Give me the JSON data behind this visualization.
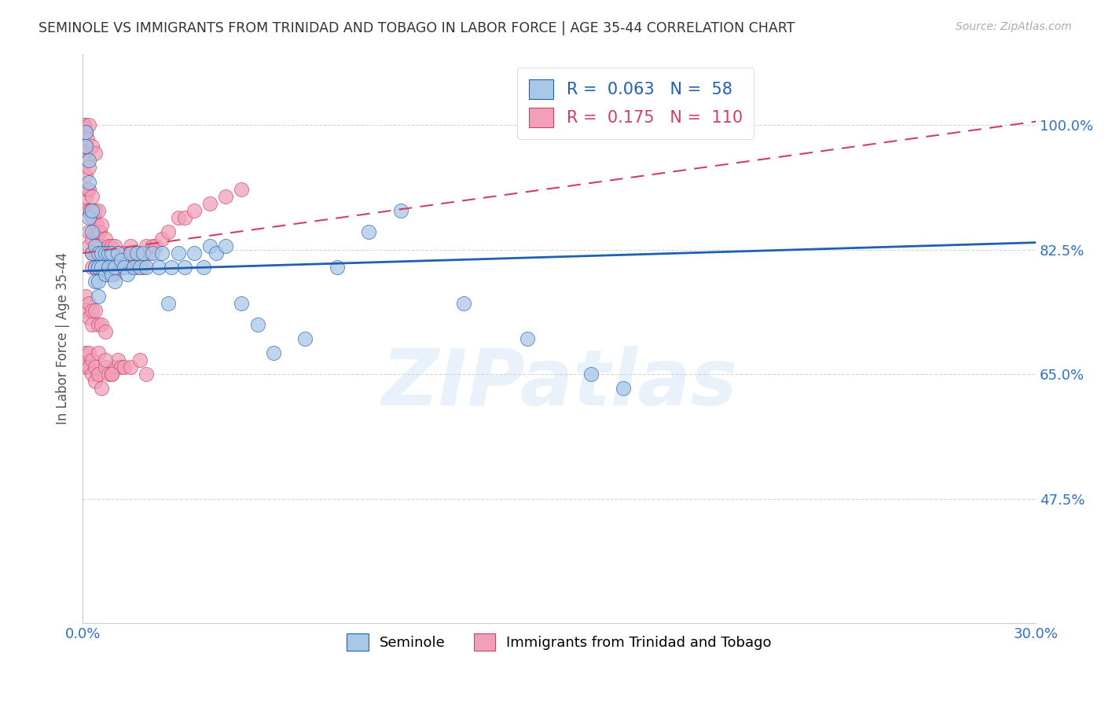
{
  "title": "SEMINOLE VS IMMIGRANTS FROM TRINIDAD AND TOBAGO IN LABOR FORCE | AGE 35-44 CORRELATION CHART",
  "source": "Source: ZipAtlas.com",
  "ylabel": "In Labor Force | Age 35-44",
  "legend_label1": "Seminole",
  "legend_label2": "Immigrants from Trinidad and Tobago",
  "R1": 0.063,
  "N1": 58,
  "R2": 0.175,
  "N2": 110,
  "color1": "#a8c8e8",
  "color2": "#f0a0b8",
  "trendline1_color": "#2060b0",
  "trendline2_color": "#d04060",
  "xlim": [
    0.0,
    0.3
  ],
  "ylim": [
    0.3,
    1.1
  ],
  "ytick_values": [
    0.475,
    0.65,
    0.825,
    1.0
  ],
  "ytick_labels": [
    "47.5%",
    "65.0%",
    "82.5%",
    "100.0%"
  ],
  "watermark": "ZIPatlas",
  "blue_trendline": [
    0.795,
    0.835
  ],
  "pink_trendline": [
    0.82,
    1.005
  ],
  "blue_scatter_x": [
    0.001,
    0.001,
    0.002,
    0.002,
    0.002,
    0.003,
    0.003,
    0.003,
    0.004,
    0.004,
    0.004,
    0.005,
    0.005,
    0.005,
    0.005,
    0.006,
    0.006,
    0.007,
    0.007,
    0.008,
    0.008,
    0.009,
    0.009,
    0.01,
    0.01,
    0.011,
    0.012,
    0.013,
    0.014,
    0.015,
    0.016,
    0.017,
    0.018,
    0.019,
    0.02,
    0.022,
    0.024,
    0.025,
    0.027,
    0.028,
    0.03,
    0.032,
    0.035,
    0.038,
    0.04,
    0.042,
    0.045,
    0.05,
    0.055,
    0.06,
    0.07,
    0.08,
    0.09,
    0.1,
    0.12,
    0.14,
    0.16,
    0.17
  ],
  "blue_scatter_y": [
    0.97,
    0.99,
    0.95,
    0.92,
    0.87,
    0.88,
    0.85,
    0.82,
    0.83,
    0.8,
    0.78,
    0.82,
    0.8,
    0.78,
    0.76,
    0.82,
    0.8,
    0.82,
    0.79,
    0.82,
    0.8,
    0.82,
    0.79,
    0.8,
    0.78,
    0.82,
    0.81,
    0.8,
    0.79,
    0.82,
    0.8,
    0.82,
    0.8,
    0.82,
    0.8,
    0.82,
    0.8,
    0.82,
    0.75,
    0.8,
    0.82,
    0.8,
    0.82,
    0.8,
    0.83,
    0.82,
    0.83,
    0.75,
    0.72,
    0.68,
    0.7,
    0.8,
    0.85,
    0.88,
    0.75,
    0.7,
    0.65,
    0.63
  ],
  "pink_scatter_x": [
    0.0005,
    0.0005,
    0.001,
    0.001,
    0.001,
    0.001,
    0.001,
    0.0015,
    0.0015,
    0.002,
    0.002,
    0.002,
    0.002,
    0.002,
    0.0025,
    0.003,
    0.003,
    0.003,
    0.003,
    0.003,
    0.0035,
    0.004,
    0.004,
    0.004,
    0.004,
    0.0045,
    0.005,
    0.005,
    0.005,
    0.005,
    0.0055,
    0.006,
    0.006,
    0.006,
    0.007,
    0.007,
    0.007,
    0.008,
    0.008,
    0.008,
    0.009,
    0.009,
    0.01,
    0.01,
    0.01,
    0.011,
    0.012,
    0.012,
    0.013,
    0.014,
    0.015,
    0.015,
    0.016,
    0.017,
    0.018,
    0.019,
    0.02,
    0.021,
    0.022,
    0.023,
    0.025,
    0.027,
    0.03,
    0.032,
    0.035,
    0.04,
    0.045,
    0.05,
    0.001,
    0.001,
    0.002,
    0.002,
    0.003,
    0.003,
    0.004,
    0.005,
    0.006,
    0.007,
    0.001,
    0.001,
    0.002,
    0.002,
    0.003,
    0.003,
    0.004,
    0.004,
    0.005,
    0.006,
    0.007,
    0.008,
    0.009,
    0.01,
    0.011,
    0.012,
    0.013,
    0.015,
    0.018,
    0.02,
    0.0005,
    0.001,
    0.0015,
    0.002,
    0.003,
    0.004,
    0.005,
    0.007,
    0.009,
    0.015
  ],
  "pink_scatter_y": [
    0.97,
    1.0,
    0.99,
    0.96,
    0.93,
    0.9,
    0.88,
    0.95,
    0.91,
    0.94,
    0.91,
    0.88,
    0.85,
    0.83,
    0.88,
    0.9,
    0.87,
    0.84,
    0.82,
    0.8,
    0.87,
    0.88,
    0.85,
    0.82,
    0.8,
    0.86,
    0.88,
    0.85,
    0.83,
    0.8,
    0.85,
    0.86,
    0.83,
    0.8,
    0.84,
    0.81,
    0.79,
    0.83,
    0.81,
    0.79,
    0.83,
    0.8,
    0.83,
    0.81,
    0.79,
    0.82,
    0.82,
    0.8,
    0.82,
    0.81,
    0.83,
    0.8,
    0.82,
    0.8,
    0.82,
    0.8,
    0.83,
    0.82,
    0.83,
    0.83,
    0.84,
    0.85,
    0.87,
    0.87,
    0.88,
    0.89,
    0.9,
    0.91,
    0.76,
    0.74,
    0.75,
    0.73,
    0.74,
    0.72,
    0.74,
    0.72,
    0.72,
    0.71,
    0.68,
    0.66,
    0.68,
    0.66,
    0.67,
    0.65,
    0.66,
    0.64,
    0.65,
    0.63,
    0.66,
    0.65,
    0.65,
    0.66,
    0.67,
    0.66,
    0.66,
    0.66,
    0.67,
    0.65,
    1.0,
    0.99,
    0.98,
    1.0,
    0.97,
    0.96,
    0.68,
    0.67,
    0.65,
    0.82
  ]
}
